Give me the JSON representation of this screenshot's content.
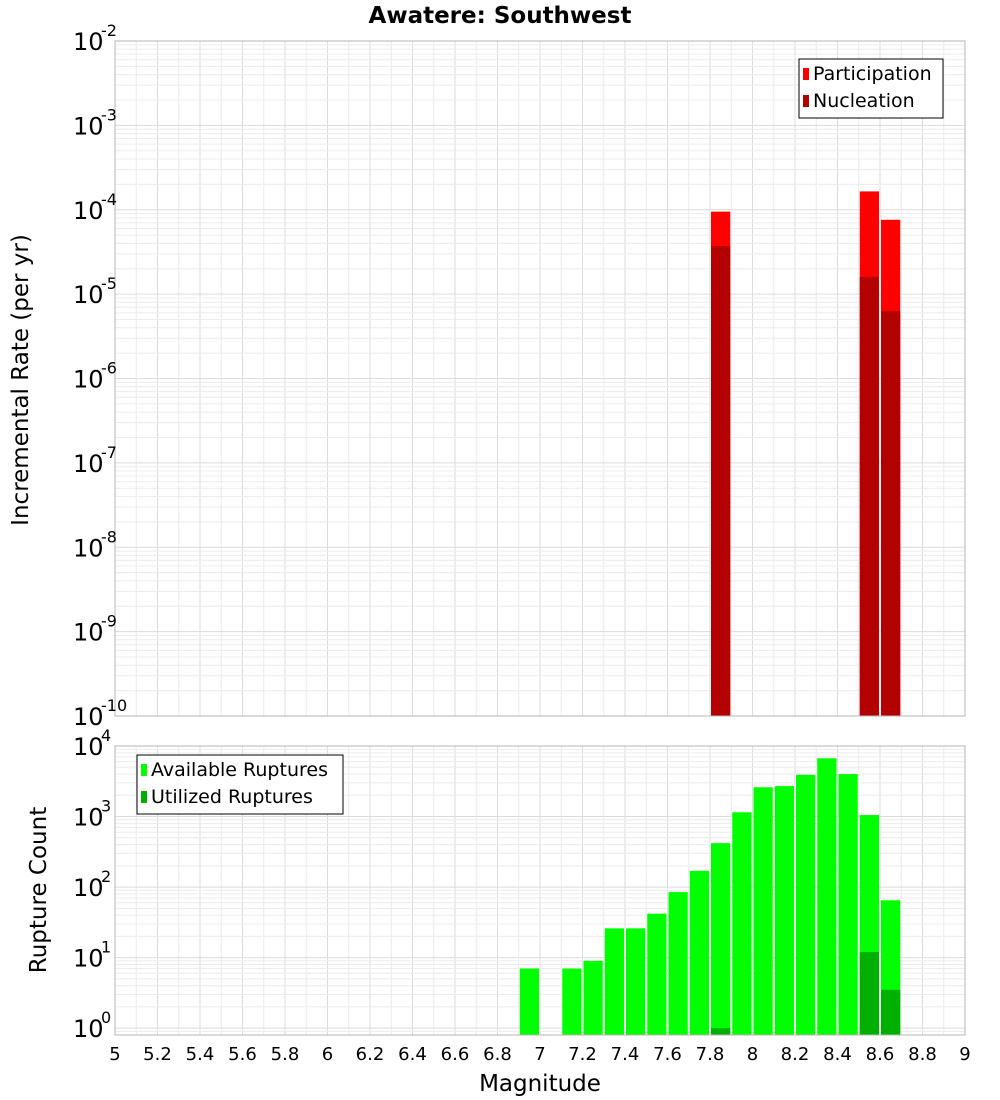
{
  "page": {
    "title": "Awatere: Southwest"
  },
  "chart_data": [
    {
      "type": "bar",
      "title": "Awatere: Southwest",
      "xlabel": "",
      "ylabel": "Incremental Rate (per yr)",
      "xlim": [
        5,
        9
      ],
      "ylim": [
        1e-10,
        0.01
      ],
      "yscale": "log",
      "grid": true,
      "legend_position": "top-right",
      "x_ticks": [],
      "y_ticks": [
        {
          "base": "10",
          "exp": "-10",
          "value": 1e-10
        },
        {
          "base": "10",
          "exp": "-9",
          "value": 1e-09
        },
        {
          "base": "10",
          "exp": "-8",
          "value": 1e-08
        },
        {
          "base": "10",
          "exp": "-7",
          "value": 1e-07
        },
        {
          "base": "10",
          "exp": "-6",
          "value": 1e-06
        },
        {
          "base": "10",
          "exp": "-5",
          "value": 1e-05
        },
        {
          "base": "10",
          "exp": "-4",
          "value": 0.0001
        },
        {
          "base": "10",
          "exp": "-3",
          "value": 0.001
        },
        {
          "base": "10",
          "exp": "-2",
          "value": 0.01
        }
      ],
      "bar_width": 0.1,
      "series": [
        {
          "name": "Participation",
          "color": "#ff0000",
          "points": [
            {
              "x": 7.85,
              "y": 9.5e-05
            },
            {
              "x": 8.55,
              "y": 0.000165
            },
            {
              "x": 8.65,
              "y": 7.6e-05
            }
          ]
        },
        {
          "name": "Nucleation",
          "color": "#b30000",
          "points": [
            {
              "x": 7.85,
              "y": 3.7e-05
            },
            {
              "x": 8.55,
              "y": 1.6e-05
            },
            {
              "x": 8.65,
              "y": 6.3e-06
            }
          ]
        }
      ]
    },
    {
      "type": "bar",
      "title": "",
      "xlabel": "Magnitude",
      "ylabel": "Rupture Count",
      "xlim": [
        5,
        9
      ],
      "ylim": [
        0.8,
        10000.0
      ],
      "yscale": "log",
      "grid": true,
      "legend_position": "top-left",
      "x_ticks": [
        "5",
        "5.2",
        "5.4",
        "5.6",
        "5.8",
        "6",
        "6.2",
        "6.4",
        "6.6",
        "6.8",
        "7",
        "7.2",
        "7.4",
        "7.6",
        "7.8",
        "8",
        "8.2",
        "8.4",
        "8.6",
        "8.8",
        "9"
      ],
      "y_ticks": [
        {
          "base": "10",
          "exp": "0",
          "value": 1
        },
        {
          "base": "10",
          "exp": "1",
          "value": 10
        },
        {
          "base": "10",
          "exp": "2",
          "value": 100
        },
        {
          "base": "10",
          "exp": "3",
          "value": 1000
        },
        {
          "base": "10",
          "exp": "4",
          "value": 10000
        }
      ],
      "bar_width": 0.1,
      "series": [
        {
          "name": "Available Ruptures",
          "color": "#00ff00",
          "points": [
            {
              "x": 6.95,
              "y": 7
            },
            {
              "x": 7.15,
              "y": 7
            },
            {
              "x": 7.25,
              "y": 9
            },
            {
              "x": 7.35,
              "y": 26
            },
            {
              "x": 7.45,
              "y": 26
            },
            {
              "x": 7.55,
              "y": 42
            },
            {
              "x": 7.65,
              "y": 85
            },
            {
              "x": 7.75,
              "y": 170
            },
            {
              "x": 7.85,
              "y": 420
            },
            {
              "x": 7.95,
              "y": 1150
            },
            {
              "x": 8.05,
              "y": 2600
            },
            {
              "x": 8.15,
              "y": 2700
            },
            {
              "x": 8.25,
              "y": 3900
            },
            {
              "x": 8.35,
              "y": 6700
            },
            {
              "x": 8.45,
              "y": 4000
            },
            {
              "x": 8.55,
              "y": 1050
            },
            {
              "x": 8.65,
              "y": 65
            }
          ]
        },
        {
          "name": "Utilized Ruptures",
          "color": "#00b000",
          "points": [
            {
              "x": 7.85,
              "y": 1
            },
            {
              "x": 8.55,
              "y": 12
            },
            {
              "x": 8.65,
              "y": 3.5
            }
          ]
        }
      ]
    }
  ]
}
